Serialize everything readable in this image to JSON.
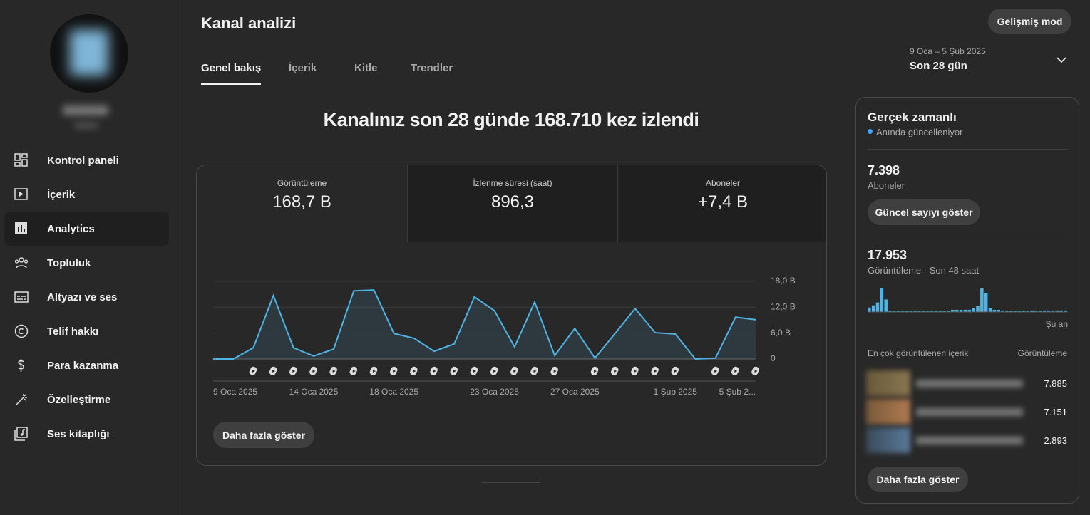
{
  "sidebar": {
    "nav": [
      "Kontrol paneli",
      "İçerik",
      "Analytics",
      "Topluluk",
      "Altyazı ve ses",
      "Telif hakkı",
      "Para kazanma",
      "Özelleştirme",
      "Ses kitaplığı"
    ]
  },
  "header": {
    "title": "Kanal analizi",
    "advanced_button": "Gelişmiş mod",
    "tabs": [
      "Genel bakış",
      "İçerik",
      "Kitle",
      "Trendler"
    ],
    "date_range": "9 Oca – 5 Şub 2025",
    "period": "Son 28 gün"
  },
  "headline": "Kanalınız son 28 günde 168.710 kez izlendi",
  "metrics": [
    {
      "label": "Görüntüleme",
      "value": "168,7 B"
    },
    {
      "label": "İzlenme süresi (saat)",
      "value": "896,3"
    },
    {
      "label": "Aboneler",
      "value": "+7,4 B"
    }
  ],
  "more_button": "Daha fazla göster",
  "chart_data": [
    {
      "type": "line",
      "color": "#4fb3e3",
      "categories": [
        "9 Oca 2025",
        null,
        null,
        null,
        null,
        "14 Oca 2025",
        null,
        null,
        null,
        "18 Oca 2025",
        null,
        null,
        null,
        null,
        "23 Oca 2025",
        null,
        null,
        null,
        "27 Oca 2025",
        null,
        null,
        null,
        null,
        "1 Şub 2025",
        null,
        null,
        null,
        "5 Şub 2..."
      ],
      "values": [
        0,
        0,
        2.6,
        14.7,
        2.6,
        0.7,
        2.3,
        15.8,
        16.0,
        5.9,
        4.8,
        1.8,
        3.5,
        14.4,
        11.2,
        2.8,
        13.2,
        0.8,
        7.1,
        0.2,
        5.9,
        11.7,
        6.1,
        5.8,
        0,
        0.2,
        9.7,
        9.1
      ],
      "ylim": [
        0,
        18
      ],
      "yticks": [
        0,
        {
          "value": 6,
          "label": "6,0 B"
        },
        {
          "value": 12,
          "label": "12,0 B"
        },
        {
          "value": 18,
          "label": "18,0 B"
        }
      ],
      "grid": true
    },
    {
      "type": "bar",
      "color": "#4fb3e3",
      "categories": [
        null,
        null,
        null,
        null,
        null,
        null,
        null,
        null,
        null,
        null,
        null,
        null,
        null,
        null,
        null,
        null,
        null,
        null,
        null,
        null,
        null,
        null,
        null,
        null,
        null,
        null,
        null,
        null,
        null,
        null,
        null,
        null,
        null,
        null,
        null,
        null,
        null,
        null,
        null,
        null,
        null,
        null,
        null,
        null,
        null,
        null,
        null,
        "Şu an"
      ],
      "values": [
        530,
        790,
        1140,
        2900,
        1500,
        90,
        90,
        90,
        90,
        90,
        90,
        90,
        90,
        90,
        90,
        90,
        90,
        90,
        90,
        90,
        260,
        260,
        260,
        260,
        260,
        440,
        700,
        2820,
        2290,
        440,
        260,
        260,
        180,
        90,
        90,
        90,
        90,
        90,
        90,
        180,
        90,
        90,
        180,
        180,
        180,
        180,
        180,
        180
      ]
    }
  ],
  "realtime": {
    "title": "Gerçek zamanlı",
    "status": "Anında güncelleniyor",
    "subscribers": "7.398",
    "subscribers_label": "Aboneler",
    "subscribers_button": "Güncel sayıyı göster",
    "views": "17.953",
    "views_label": "Görüntüleme · Son 48 saat",
    "top_header": "En çok görüntülenen içerik",
    "top_views_header": "Görüntüleme",
    "top_items": [
      "7.885",
      "7.151",
      "2.893"
    ],
    "more_button": "Daha fazla göster"
  }
}
